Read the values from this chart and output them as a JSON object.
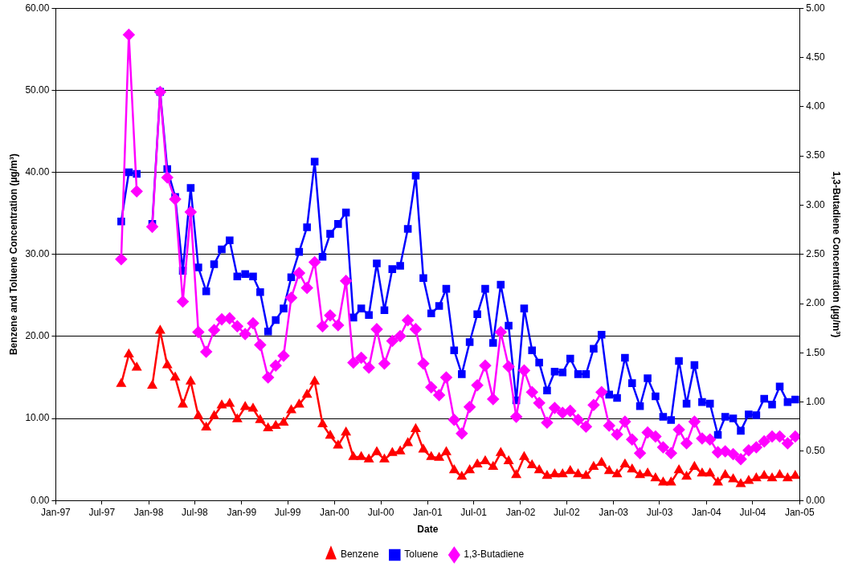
{
  "chart_data": {
    "type": "line",
    "xlabel": "Date",
    "ylabel": "Benzene and Toluene Concentration (µg/m³)",
    "y2label": "1,3-Butadiene Concentration (µg/m³)",
    "x": [
      "1997-09-15",
      "1997-10-15",
      "1997-11-15",
      "1997-12-15",
      "1998-01-15",
      "1998-02-15",
      "1998-03-15",
      "1998-04-15",
      "1998-05-15",
      "1998-06-15",
      "1998-07-15",
      "1998-08-15",
      "1998-09-15",
      "1998-10-15",
      "1998-11-15",
      "1998-12-15",
      "1999-01-15",
      "1999-02-15",
      "1999-03-15",
      "1999-04-15",
      "1999-05-15",
      "1999-06-15",
      "1999-07-15",
      "1999-08-15",
      "1999-09-15",
      "1999-10-15",
      "1999-11-15",
      "1999-12-15",
      "2000-01-15",
      "2000-02-15",
      "2000-03-15",
      "2000-04-15",
      "2000-05-15",
      "2000-06-15",
      "2000-07-15",
      "2000-08-15",
      "2000-09-15",
      "2000-10-15",
      "2000-11-15",
      "2000-12-15",
      "2001-01-15",
      "2001-02-15",
      "2001-03-15",
      "2001-04-15",
      "2001-05-15",
      "2001-06-15",
      "2001-07-15",
      "2001-08-15",
      "2001-09-15",
      "2001-10-15",
      "2001-11-15",
      "2001-12-15",
      "2002-01-15",
      "2002-02-15",
      "2002-03-15",
      "2002-04-15",
      "2002-05-15",
      "2002-06-15",
      "2002-07-15",
      "2002-08-15",
      "2002-09-15",
      "2002-10-15",
      "2002-11-15",
      "2002-12-15",
      "2003-01-15",
      "2003-02-15",
      "2003-03-15",
      "2003-04-15",
      "2003-05-15",
      "2003-06-15",
      "2003-07-15",
      "2003-08-15",
      "2003-09-15",
      "2003-10-15",
      "2003-11-15",
      "2003-12-15",
      "2004-01-15",
      "2004-02-15",
      "2004-03-15",
      "2004-04-15",
      "2004-05-15",
      "2004-06-15",
      "2004-07-15",
      "2004-08-15",
      "2004-09-15",
      "2004-10-15",
      "2004-11-15",
      "2004-12-15"
    ],
    "series": [
      {
        "name": "Benzene",
        "color": "#ff0000",
        "marker": "triangle",
        "values": [
          14.2,
          17.8,
          16.2,
          null,
          14.0,
          20.7,
          16.5,
          15.0,
          11.7,
          14.5,
          10.3,
          8.9,
          10.3,
          11.6,
          11.8,
          9.9,
          11.4,
          11.2,
          9.8,
          8.8,
          9.1,
          9.5,
          11.0,
          11.7,
          12.9,
          14.5,
          9.3,
          7.9,
          6.7,
          8.3,
          5.3,
          5.3,
          5.0,
          5.9,
          5.0,
          5.8,
          6.0,
          7.0,
          8.7,
          6.2,
          5.3,
          5.2,
          5.9,
          3.7,
          2.9,
          3.7,
          4.4,
          4.8,
          4.1,
          5.8,
          4.8,
          3.1,
          5.3,
          4.3,
          3.7,
          3.0,
          3.2,
          3.2,
          3.6,
          3.2,
          3.0,
          4.1,
          4.6,
          3.6,
          3.2,
          4.4,
          3.8,
          3.1,
          3.3,
          2.7,
          2.2,
          2.2,
          3.7,
          2.9,
          4.1,
          3.3,
          3.3,
          2.2,
          3.1,
          2.6,
          2.0,
          2.4,
          2.7,
          3.0,
          2.7,
          3.1,
          2.7,
          3.0
        ]
      },
      {
        "name": "Toluene",
        "color": "#0000ff",
        "marker": "square",
        "values": [
          34.0,
          40.0,
          39.8,
          null,
          33.7,
          49.8,
          40.4,
          37.0,
          28.0,
          38.1,
          28.4,
          25.5,
          28.8,
          30.6,
          31.7,
          27.3,
          27.6,
          27.3,
          25.4,
          20.6,
          22.0,
          23.4,
          27.2,
          30.3,
          33.3,
          41.3,
          29.7,
          32.5,
          33.7,
          35.1,
          22.3,
          23.4,
          22.6,
          28.9,
          23.2,
          28.2,
          28.6,
          33.1,
          39.6,
          27.1,
          22.8,
          23.7,
          25.8,
          18.3,
          15.4,
          19.3,
          22.7,
          25.8,
          19.2,
          26.3,
          21.3,
          12.2,
          23.4,
          18.3,
          16.8,
          13.4,
          15.7,
          15.6,
          17.3,
          15.4,
          15.4,
          18.5,
          20.2,
          12.9,
          12.5,
          17.4,
          14.3,
          11.5,
          14.9,
          12.7,
          10.2,
          9.8,
          17.0,
          11.8,
          16.5,
          12.0,
          11.8,
          8.0,
          10.2,
          10.0,
          8.5,
          10.5,
          10.4,
          12.4,
          11.7,
          13.9,
          12.0,
          12.3
        ]
      },
      {
        "name": "1,3-Butadiene",
        "color": "#ff00ff",
        "marker": "diamond",
        "axis": "y2",
        "values": [
          2.45,
          4.73,
          3.14,
          null,
          2.78,
          4.15,
          3.28,
          3.06,
          2.02,
          2.93,
          1.71,
          1.51,
          1.73,
          1.84,
          1.85,
          1.77,
          1.69,
          1.8,
          1.58,
          1.25,
          1.37,
          1.47,
          2.06,
          2.31,
          2.16,
          2.42,
          1.77,
          1.88,
          1.78,
          2.23,
          1.4,
          1.45,
          1.35,
          1.74,
          1.39,
          1.62,
          1.67,
          1.83,
          1.74,
          1.39,
          1.15,
          1.07,
          1.25,
          0.82,
          0.68,
          0.95,
          1.17,
          1.37,
          1.03,
          1.71,
          1.36,
          0.85,
          1.32,
          1.1,
          0.99,
          0.79,
          0.94,
          0.89,
          0.91,
          0.82,
          0.75,
          0.97,
          1.1,
          0.76,
          0.67,
          0.8,
          0.62,
          0.48,
          0.69,
          0.65,
          0.54,
          0.48,
          0.72,
          0.58,
          0.8,
          0.63,
          0.62,
          0.49,
          0.5,
          0.47,
          0.42,
          0.51,
          0.54,
          0.6,
          0.65,
          0.65,
          0.58,
          0.65
        ]
      }
    ],
    "xlim": [
      "1997-01-01",
      "2005-01-01"
    ],
    "xticks": [
      {
        "value": "1997-01-01",
        "label": "Jan-97"
      },
      {
        "value": "1997-07-01",
        "label": "Jul-97"
      },
      {
        "value": "1998-01-01",
        "label": "Jan-98"
      },
      {
        "value": "1998-07-01",
        "label": "Jul-98"
      },
      {
        "value": "1999-01-01",
        "label": "Jan-99"
      },
      {
        "value": "1999-07-01",
        "label": "Jul-99"
      },
      {
        "value": "2000-01-01",
        "label": "Jan-00"
      },
      {
        "value": "2000-07-01",
        "label": "Jul-00"
      },
      {
        "value": "2001-01-01",
        "label": "Jan-01"
      },
      {
        "value": "2001-07-01",
        "label": "Jul-01"
      },
      {
        "value": "2002-01-01",
        "label": "Jan-02"
      },
      {
        "value": "2002-07-01",
        "label": "Jul-02"
      },
      {
        "value": "2003-01-01",
        "label": "Jan-03"
      },
      {
        "value": "2003-07-01",
        "label": "Jul-03"
      },
      {
        "value": "2004-01-01",
        "label": "Jan-04"
      },
      {
        "value": "2004-07-01",
        "label": "Jul-04"
      },
      {
        "value": "2005-01-01",
        "label": "Jan-05"
      }
    ],
    "ylim": [
      0,
      60
    ],
    "yticks": [
      {
        "value": 0,
        "label": "0.00"
      },
      {
        "value": 10,
        "label": "10.00"
      },
      {
        "value": 20,
        "label": "20.00"
      },
      {
        "value": 30,
        "label": "30.00"
      },
      {
        "value": 40,
        "label": "40.00"
      },
      {
        "value": 50,
        "label": "50.00"
      },
      {
        "value": 60,
        "label": "60.00"
      }
    ],
    "y2lim": [
      0,
      5
    ],
    "y2ticks": [
      {
        "value": 0,
        "label": "0.00"
      },
      {
        "value": 0.5,
        "label": "0.50"
      },
      {
        "value": 1,
        "label": "1.00"
      },
      {
        "value": 1.5,
        "label": "1.50"
      },
      {
        "value": 2,
        "label": "2.00"
      },
      {
        "value": 2.5,
        "label": "2.50"
      },
      {
        "value": 3,
        "label": "3.00"
      },
      {
        "value": 3.5,
        "label": "3.50"
      },
      {
        "value": 4,
        "label": "4.00"
      },
      {
        "value": 4.5,
        "label": "4.50"
      },
      {
        "value": 5,
        "label": "5.00"
      }
    ],
    "grid": "y",
    "legend": "bottom",
    "line_style": "solid"
  }
}
